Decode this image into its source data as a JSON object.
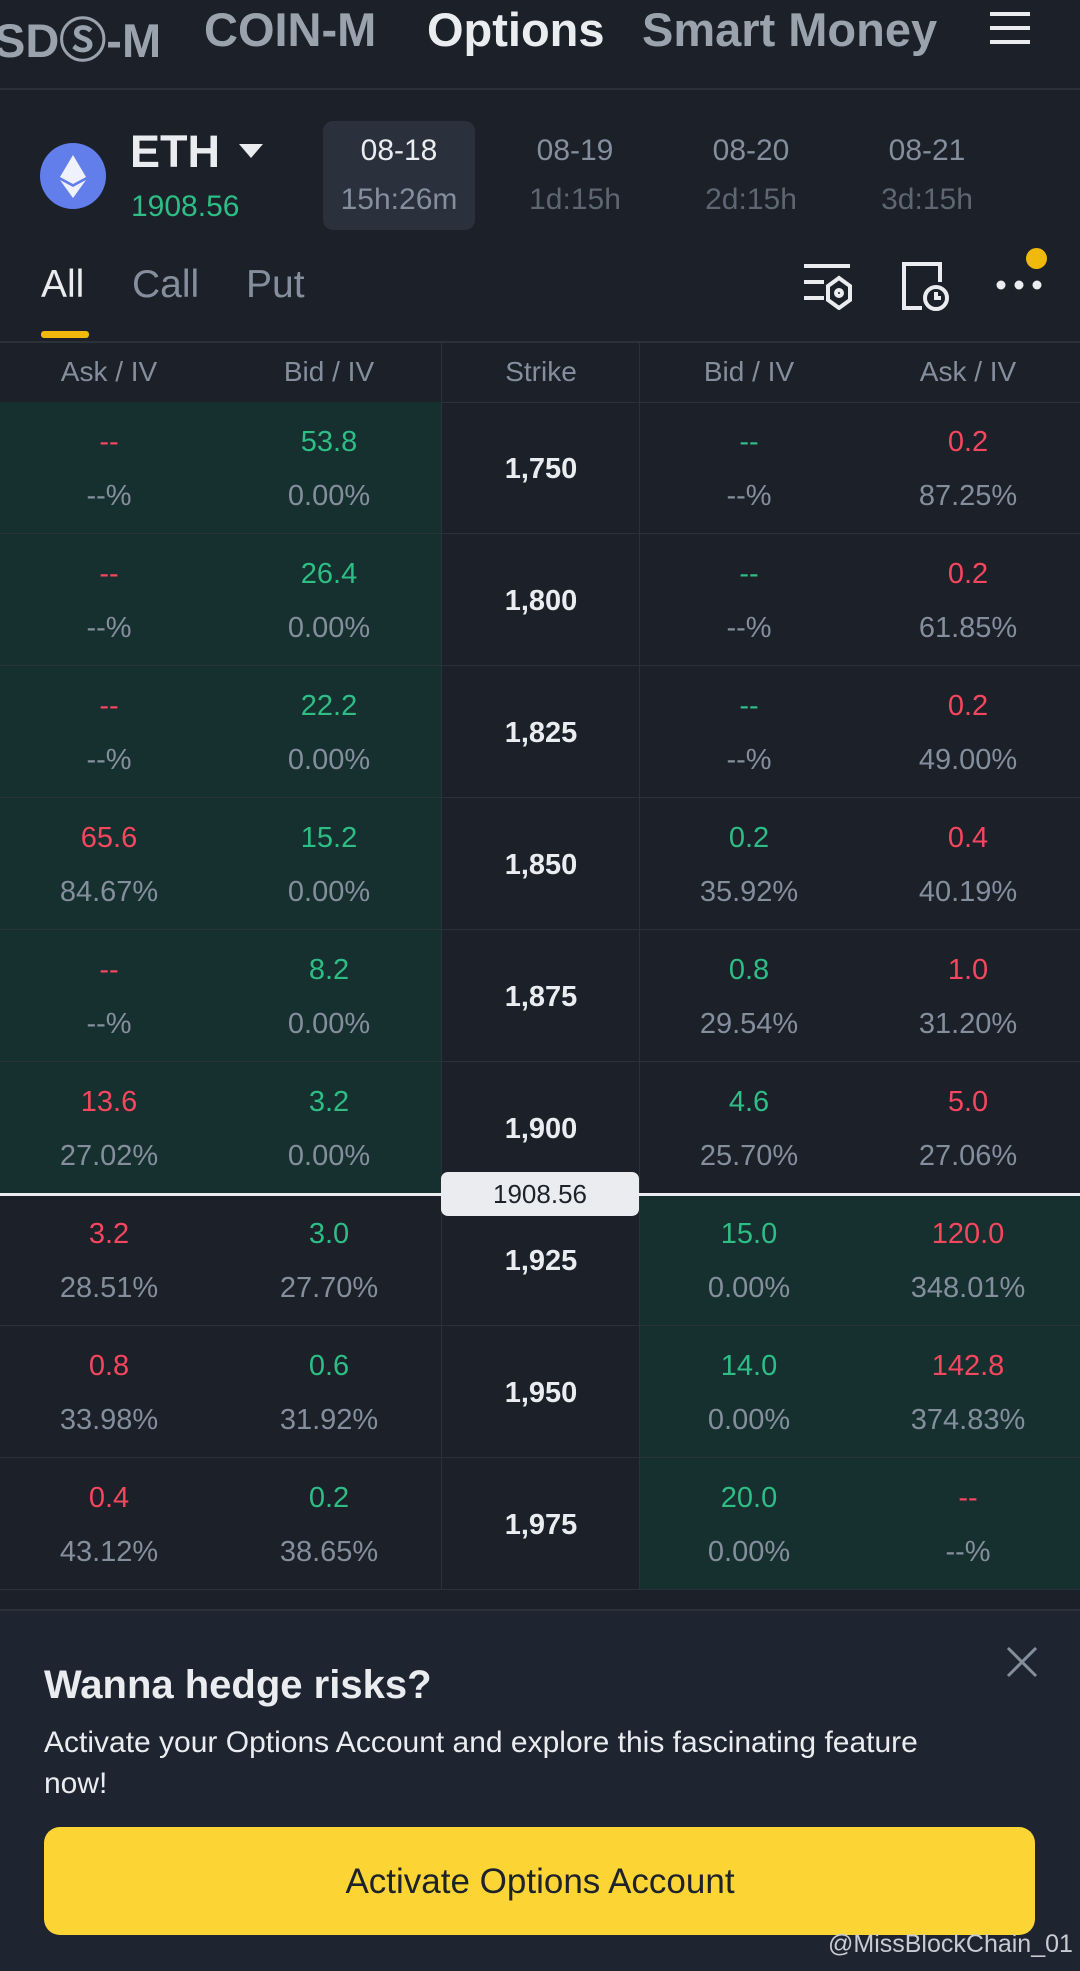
{
  "nav": {
    "tabs": [
      "SDⓈ-M",
      "COIN-M",
      "Options",
      "Smart Money"
    ]
  },
  "asset": {
    "symbol": "ETH",
    "price": "1908.56"
  },
  "expiries": [
    {
      "date": "08-18",
      "time": "15h:26m"
    },
    {
      "date": "08-19",
      "time": "1d:15h"
    },
    {
      "date": "08-20",
      "time": "2d:15h"
    },
    {
      "date": "08-21",
      "time": "3d:15h"
    }
  ],
  "filters": [
    "All",
    "Call",
    "Put"
  ],
  "table": {
    "headers": [
      "Ask / IV",
      "Bid / IV",
      "Strike",
      "Bid / IV",
      "Ask / IV"
    ],
    "rows": [
      {
        "call_ask": "--",
        "call_ask_iv": "--%",
        "call_bid": "53.8",
        "call_bid_iv": "0.00%",
        "strike": "1,750",
        "put_bid": "--",
        "put_bid_iv": "--%",
        "put_ask": "0.2",
        "put_ask_iv": "87.25%"
      },
      {
        "call_ask": "--",
        "call_ask_iv": "--%",
        "call_bid": "26.4",
        "call_bid_iv": "0.00%",
        "strike": "1,800",
        "put_bid": "--",
        "put_bid_iv": "--%",
        "put_ask": "0.2",
        "put_ask_iv": "61.85%"
      },
      {
        "call_ask": "--",
        "call_ask_iv": "--%",
        "call_bid": "22.2",
        "call_bid_iv": "0.00%",
        "strike": "1,825",
        "put_bid": "--",
        "put_bid_iv": "--%",
        "put_ask": "0.2",
        "put_ask_iv": "49.00%"
      },
      {
        "call_ask": "65.6",
        "call_ask_iv": "84.67%",
        "call_bid": "15.2",
        "call_bid_iv": "0.00%",
        "strike": "1,850",
        "put_bid": "0.2",
        "put_bid_iv": "35.92%",
        "put_ask": "0.4",
        "put_ask_iv": "40.19%"
      },
      {
        "call_ask": "--",
        "call_ask_iv": "--%",
        "call_bid": "8.2",
        "call_bid_iv": "0.00%",
        "strike": "1,875",
        "put_bid": "0.8",
        "put_bid_iv": "29.54%",
        "put_ask": "1.0",
        "put_ask_iv": "31.20%"
      },
      {
        "call_ask": "13.6",
        "call_ask_iv": "27.02%",
        "call_bid": "3.2",
        "call_bid_iv": "0.00%",
        "strike": "1,900",
        "put_bid": "4.6",
        "put_bid_iv": "25.70%",
        "put_ask": "5.0",
        "put_ask_iv": "27.06%"
      },
      {
        "call_ask": "3.2",
        "call_ask_iv": "28.51%",
        "call_bid": "3.0",
        "call_bid_iv": "27.70%",
        "strike": "1,925",
        "put_bid": "15.0",
        "put_bid_iv": "0.00%",
        "put_ask": "120.0",
        "put_ask_iv": "348.01%"
      },
      {
        "call_ask": "0.8",
        "call_ask_iv": "33.98%",
        "call_bid": "0.6",
        "call_bid_iv": "31.92%",
        "strike": "1,950",
        "put_bid": "14.0",
        "put_bid_iv": "0.00%",
        "put_ask": "142.8",
        "put_ask_iv": "374.83%"
      },
      {
        "call_ask": "0.4",
        "call_ask_iv": "43.12%",
        "call_bid": "0.2",
        "call_bid_iv": "38.65%",
        "strike": "1,975",
        "put_bid": "20.0",
        "put_bid_iv": "0.00%",
        "put_ask": "--",
        "put_ask_iv": "--%"
      }
    ]
  },
  "banner": {
    "title": "Wanna hedge risks?",
    "body": "Activate your Options Account and explore this fascinating feature now!",
    "button": "Activate Options Account"
  },
  "watermark": "@MissBlockChain_01"
}
